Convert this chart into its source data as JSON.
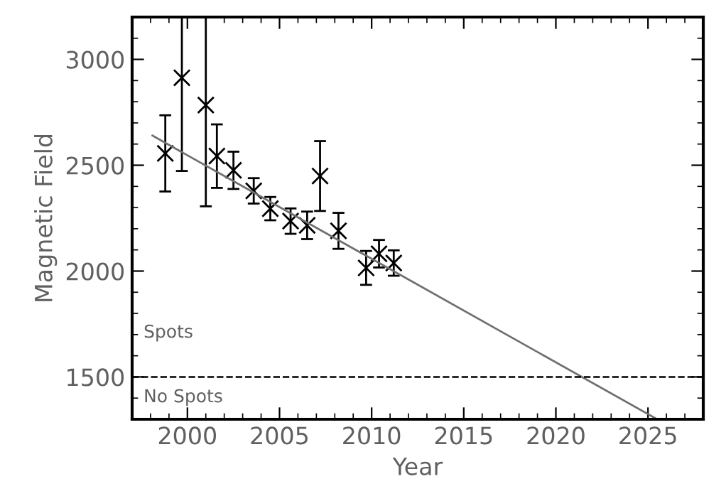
{
  "chart_data": {
    "type": "scatter",
    "xlabel": "Year",
    "ylabel": "Magnetic Field",
    "xlim": [
      1997,
      2028
    ],
    "xticks": [
      2000,
      2005,
      2010,
      2015,
      2020,
      2025
    ],
    "ylim": [
      1300,
      3200
    ],
    "yticks": [
      1500,
      2000,
      2500,
      3000
    ],
    "marker": "cross",
    "grid": false,
    "series": [
      {
        "type": "scatter",
        "color": "#000000",
        "x": [
          1998.8,
          1999.7,
          2001.0,
          2001.6,
          2002.5,
          2003.6,
          2004.5,
          2005.6,
          2006.5,
          2007.2,
          2008.2,
          2009.7,
          2010.4,
          2011.2
        ],
        "values": [
          2556,
          2913,
          2784,
          2543,
          2476,
          2379,
          2295,
          2236,
          2216,
          2449,
          2190,
          2015,
          2082,
          2038
        ],
        "errors": [
          180,
          [
            2473,
            3200
          ],
          [
            2306,
            3200
          ],
          150,
          88,
          60,
          55,
          60,
          65,
          165,
          85,
          80,
          65,
          60
        ]
      },
      {
        "type": "line",
        "color": "#707070",
        "marker": "none",
        "line_style": "solid",
        "x": [
          1998.1,
          2025.5
        ],
        "values": [
          2640,
          1300
        ]
      }
    ],
    "ref_lines": [
      {
        "axis": "y",
        "value": 1500,
        "color": "#000000",
        "line_style": "dashed"
      }
    ],
    "annotations": [
      "Spots",
      "No Spots"
    ]
  }
}
